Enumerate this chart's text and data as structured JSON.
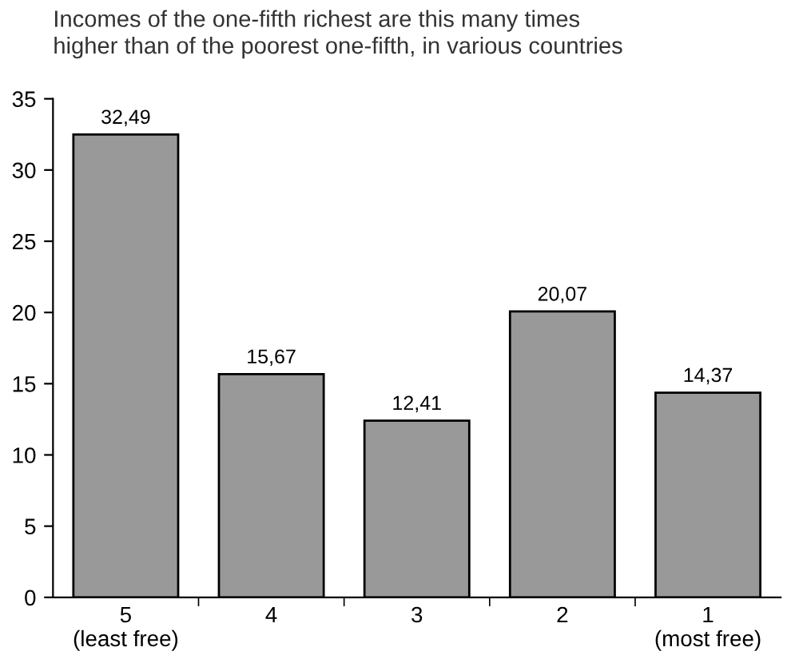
{
  "chart_data": {
    "type": "bar",
    "title": "Incomes of the one-fifth richest are this many times\nhigher than of the poorest one-fifth, in various countries",
    "categories": [
      "5\n(least free)",
      "4",
      "3",
      "2",
      "1\n(most free)"
    ],
    "values": [
      32.49,
      15.67,
      12.41,
      20.07,
      14.37
    ],
    "value_labels": [
      "32,49",
      "15,67",
      "12,41",
      "20,07",
      "14,37"
    ],
    "color": "#999999",
    "ylim": [
      0,
      35
    ],
    "yticks": [
      0,
      5,
      10,
      15,
      20,
      25,
      30,
      35
    ],
    "grid": false,
    "legend": false
  }
}
